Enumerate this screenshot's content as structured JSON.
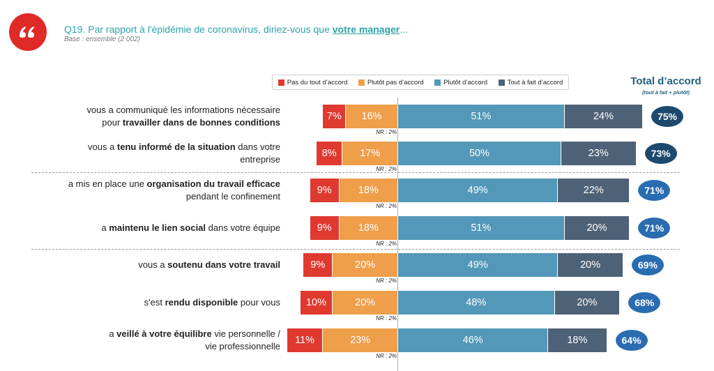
{
  "chart_data": {
    "type": "diverging_bar",
    "title": [
      {
        "text": "Q19. Par rapport à l'épidémie de coronavirus, diriez-vous que ",
        "bold": false,
        "underline": false
      },
      {
        "text": "votre manager",
        "bold": true,
        "underline": true
      },
      {
        "text": "...",
        "bold": false,
        "underline": false
      }
    ],
    "subtitle": "Base : ensemble (2 002)",
    "total_title": "Total d’accord",
    "total_subtitle": "(tout à fait + plutôt)",
    "categories": [
      [
        [
          {
            "text": "vous a communiqué les informations nécessaire",
            "bold": false
          }
        ],
        [
          {
            "text": "pour ",
            "bold": false
          },
          {
            "text": "travailler dans de bonnes conditions",
            "bold": true
          }
        ]
      ],
      [
        [
          {
            "text": "vous a ",
            "bold": false
          },
          {
            "text": "tenu informé de la situation",
            "bold": true
          },
          {
            "text": " dans votre",
            "bold": false
          }
        ],
        [
          {
            "text": "entreprise",
            "bold": false
          }
        ]
      ],
      [
        [
          {
            "text": "a mis en place une ",
            "bold": false
          },
          {
            "text": "organisation du travail efficace",
            "bold": true
          }
        ],
        [
          {
            "text": "pendant le confinement",
            "bold": false
          }
        ]
      ],
      [
        [
          {
            "text": "a ",
            "bold": false
          },
          {
            "text": "maintenu le lien social",
            "bold": true
          },
          {
            "text": " dans votre équipe",
            "bold": false
          }
        ]
      ],
      [
        [
          {
            "text": "vous a ",
            "bold": false
          },
          {
            "text": "soutenu dans votre travail",
            "bold": true
          }
        ]
      ],
      [
        [
          {
            "text": "s'est ",
            "bold": false
          },
          {
            "text": "rendu disponible",
            "bold": true
          },
          {
            "text": " pour vous",
            "bold": false
          }
        ]
      ],
      [
        [
          {
            "text": "a ",
            "bold": false
          },
          {
            "text": "veillé à votre équilibre",
            "bold": true
          },
          {
            "text": " vie personnelle /",
            "bold": false
          }
        ],
        [
          {
            "text": "vie professionnelle",
            "bold": false
          }
        ]
      ]
    ],
    "series": [
      {
        "name": "Pas du tout d’accord",
        "color": "#e0392f",
        "side": "left",
        "values": [
          7,
          8,
          9,
          9,
          9,
          10,
          11
        ],
        "value_labels": [
          "7%",
          "8%",
          "9%",
          "9%",
          "9%",
          "10%",
          "11%"
        ]
      },
      {
        "name": "Plutôt pas d’accord",
        "color": "#ef9e49",
        "side": "left",
        "values": [
          16,
          17,
          18,
          18,
          20,
          20,
          23
        ],
        "value_labels": [
          "16%",
          "17%",
          "18%",
          "18%",
          "20%",
          "20%",
          "23%"
        ]
      },
      {
        "name": "Plutôt d’accord",
        "color": "#5398b8",
        "side": "right",
        "values": [
          51,
          50,
          49,
          51,
          49,
          48,
          46
        ],
        "value_labels": [
          "51%",
          "50%",
          "49%",
          "51%",
          "49%",
          "48%",
          "46%"
        ]
      },
      {
        "name": "Tout à fait d’accord",
        "color": "#4e6277",
        "side": "right",
        "values": [
          24,
          23,
          22,
          20,
          20,
          20,
          18
        ],
        "value_labels": [
          "24%",
          "23%",
          "22%",
          "20%",
          "20%",
          "20%",
          "18%"
        ]
      }
    ],
    "totals": [
      75,
      73,
      71,
      71,
      69,
      68,
      64
    ],
    "total_labels": [
      "75%",
      "73%",
      "71%",
      "71%",
      "69%",
      "68%",
      "64%"
    ],
    "total_colors": [
      "#1c4a6e",
      "#1c4a6e",
      "#2a6cb0",
      "#2a6cb0",
      "#2a6cb0",
      "#2a6cb0",
      "#2a6cb0"
    ],
    "nr_values": [
      2,
      2,
      2,
      2,
      2,
      2,
      2
    ],
    "nr_labels": [
      "NR : 2%",
      "NR : 2%",
      "NR : 2%",
      "NR : 2%",
      "NR : 2%",
      "NR : 2%",
      "NR : 2%"
    ]
  }
}
